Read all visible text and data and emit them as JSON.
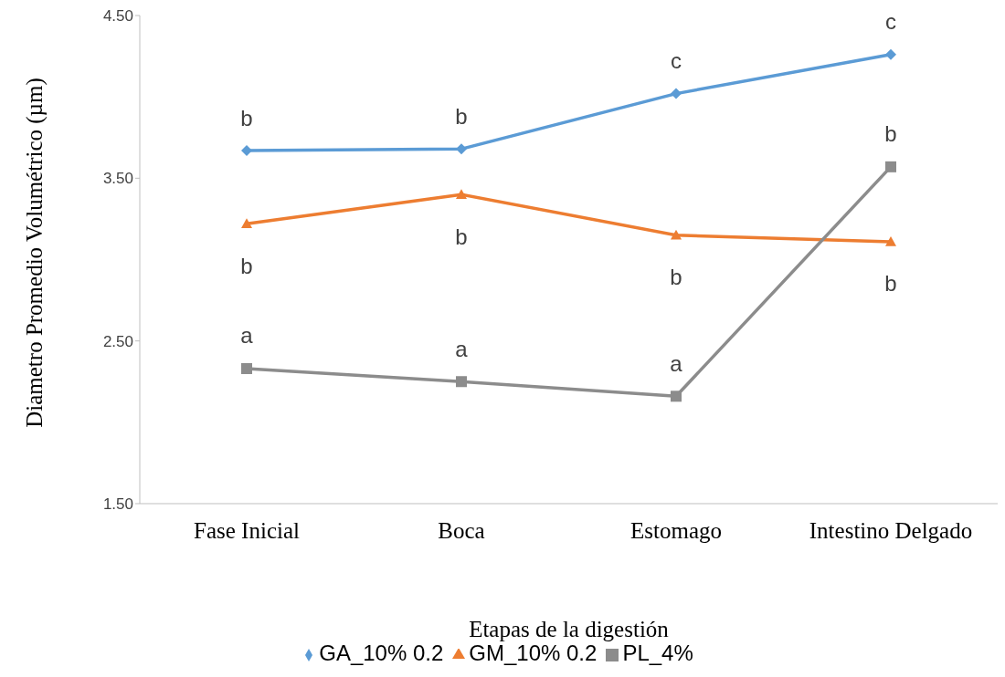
{
  "chart_data": {
    "type": "line",
    "xlabel": "Etapas de la digestión",
    "ylabel": "Diametro Promedio Volumétrico (µm)",
    "categories": [
      "Fase Inicial",
      "Boca",
      "Estomago",
      "Intestino Delgado"
    ],
    "series": [
      {
        "name": "GA_10% 0.2",
        "color": "#5b9bd5",
        "marker": "diamond",
        "values": [
          3.67,
          3.68,
          4.02,
          4.26
        ]
      },
      {
        "name": "GM_10% 0.2",
        "color": "#ed7d31",
        "marker": "triangle",
        "values": [
          3.22,
          3.4,
          3.15,
          3.11
        ]
      },
      {
        "name": "PL_4%",
        "color": "#8c8c8c",
        "marker": "square",
        "values": [
          2.33,
          2.25,
          2.16,
          3.57
        ]
      }
    ],
    "ylim": [
      1.5,
      4.5
    ],
    "yticks": [
      {
        "value": 1.5,
        "label": "1.50"
      },
      {
        "value": 2.5,
        "label": "2.50"
      },
      {
        "value": 3.5,
        "label": "3.50"
      },
      {
        "value": 4.5,
        "label": "4.50"
      }
    ],
    "grid": false,
    "legend": "bottom",
    "line_style": "solid",
    "annotations": [
      {
        "text": "b",
        "x": "Fase Inicial",
        "y": 3.67
      },
      {
        "text": "b",
        "x": "Boca",
        "y": 3.68
      },
      {
        "text": "c",
        "x": "Estomago",
        "y": 4.02
      },
      {
        "text": "c",
        "x": "Intestino Delgado",
        "y": 4.26
      },
      {
        "text": "b",
        "x": "Fase Inicial",
        "y": 3.22
      },
      {
        "text": "b",
        "x": "Boca",
        "y": 3.4
      },
      {
        "text": "b",
        "x": "Estomago",
        "y": 3.15
      },
      {
        "text": "b",
        "x": "Intestino Delgado",
        "y": 3.11
      },
      {
        "text": "a",
        "x": "Fase Inicial",
        "y": 2.33
      },
      {
        "text": "a",
        "x": "Boca",
        "y": 2.25
      },
      {
        "text": "a",
        "x": "Estomago",
        "y": 2.16
      },
      {
        "text": "b",
        "x": "Intestino Delgado",
        "y": 3.57
      }
    ]
  }
}
